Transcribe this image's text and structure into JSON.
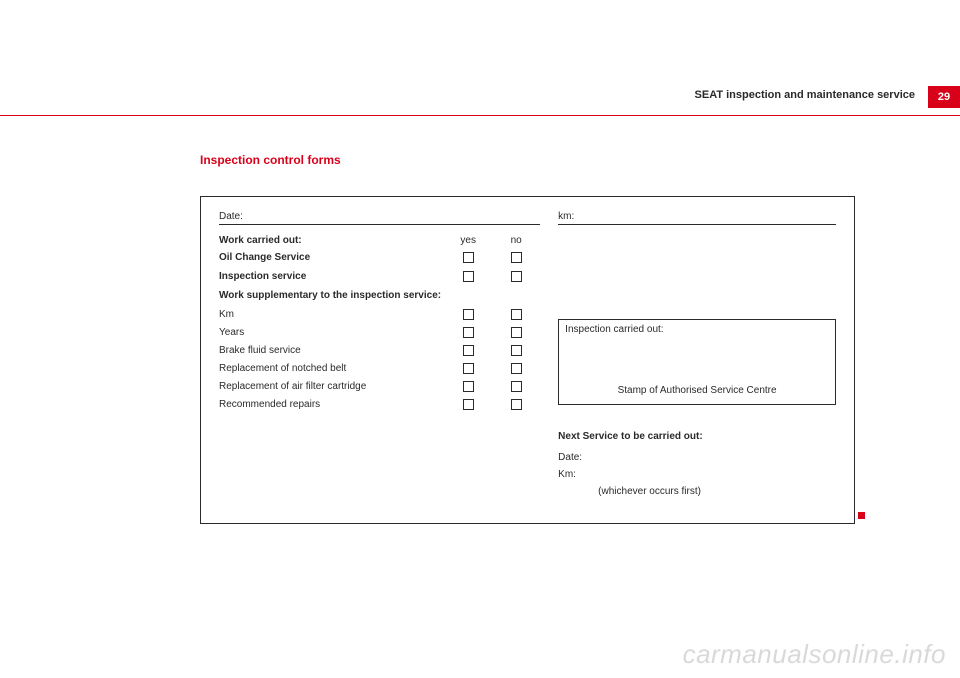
{
  "colors": {
    "accent": "#d9001a",
    "text": "#2a2a2a",
    "watermark": "#d9d9d9",
    "background": "#ffffff"
  },
  "header": {
    "running_title": "SEAT inspection and maintenance service",
    "page_number": "29"
  },
  "section_title": "Inspection control forms",
  "left": {
    "date_label": "Date:",
    "work_carried_out": "Work carried out:",
    "yes": "yes",
    "no": "no",
    "oil_change": "Oil Change Service",
    "inspection_service": "Inspection service",
    "supp_header": "Work supplementary to the inspection service:",
    "km": "Km",
    "years": "Years",
    "brake_fluid": "Brake fluid service",
    "notched_belt": "Replacement of notched belt",
    "air_filter": "Replacement of air filter cartridge",
    "recommended": "Recommended repairs"
  },
  "right": {
    "km_label": "km:",
    "stamp_top": "Inspection carried out:",
    "stamp_bottom": "Stamp of Authorised Service Centre",
    "next_header": "Next Service to be carried out:",
    "next_date": "Date:",
    "next_km": "Km:",
    "whichever": "(whichever occurs first)"
  },
  "watermark": "carmanualsonline.info"
}
